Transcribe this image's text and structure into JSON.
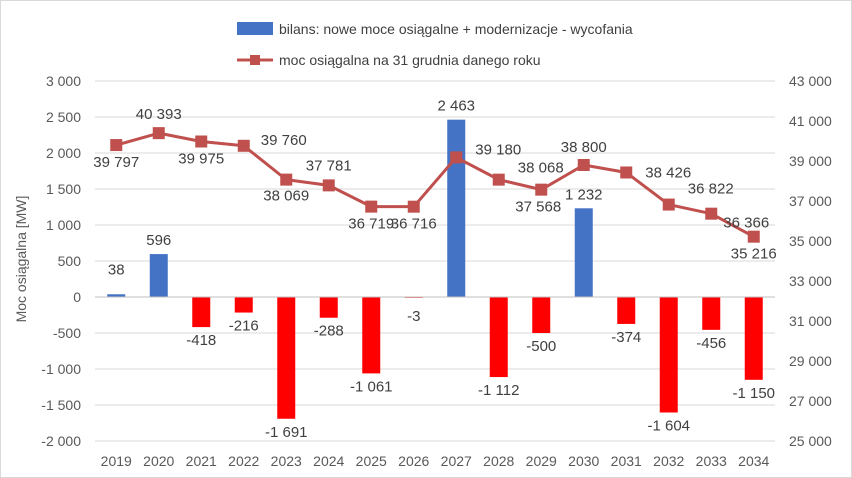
{
  "chart_data": {
    "type": "bar+line",
    "title": "",
    "ylabel": "Moc osiągalna [MW]",
    "ylim_left": [
      -2000,
      3000
    ],
    "ylim_right": [
      25000,
      43000
    ],
    "y_ticks_left": [
      -2000,
      -1500,
      -1000,
      -500,
      0,
      500,
      1000,
      1500,
      2000,
      2500,
      3000
    ],
    "y_ticks_right": [
      25000,
      27000,
      29000,
      31000,
      33000,
      35000,
      37000,
      39000,
      41000,
      43000
    ],
    "y_tick_labels_left": [
      "-2 000",
      "-1 500",
      "-1 000",
      "-500",
      "0",
      "500",
      "1 000",
      "1 500",
      "2 000",
      "2 500",
      "3 000"
    ],
    "y_tick_labels_right": [
      "25 000",
      "27 000",
      "29 000",
      "31 000",
      "33 000",
      "35 000",
      "37 000",
      "39 000",
      "41 000",
      "43 000"
    ],
    "grid": true,
    "legend_position": "top",
    "categories": [
      "2019",
      "2020",
      "2021",
      "2022",
      "2023",
      "2024",
      "2025",
      "2026",
      "2027",
      "2028",
      "2029",
      "2030",
      "2031",
      "2032",
      "2033",
      "2034"
    ],
    "series": [
      {
        "name": "bilans: nowe moce osiągalne + modernizacje - wycofania",
        "type": "bar",
        "axis": "left",
        "values": [
          38,
          596,
          -418,
          -216,
          -1691,
          -288,
          -1061,
          -3,
          2463,
          -1112,
          -500,
          1232,
          -374,
          -1604,
          -456,
          -1150
        ],
        "labels": [
          "38",
          "596",
          "-418",
          "-216",
          "-1 691",
          "-288",
          "-1 061",
          "-3",
          "2 463",
          "-1 112",
          "-500",
          "1 232",
          "-374",
          "-1 604",
          "-456",
          "-1 150"
        ],
        "color_positive": "#4472c4",
        "color_negative": "#ff0000"
      },
      {
        "name": "moc osiągalna na 31 grudnia danego roku",
        "type": "line",
        "axis": "right",
        "values": [
          39797,
          40393,
          39975,
          39760,
          38069,
          37781,
          36719,
          36716,
          39180,
          38068,
          37568,
          38800,
          38426,
          36822,
          36366,
          35216
        ],
        "labels": [
          "39 797",
          "40 393",
          "39 975",
          "39 760",
          "38 069",
          "37 781",
          "36 719",
          "36 716",
          "39 180",
          "38 068",
          "37 568",
          "38 800",
          "38 426",
          "36 822",
          "36 366",
          "35 216"
        ],
        "color": "#c0504d"
      }
    ]
  }
}
